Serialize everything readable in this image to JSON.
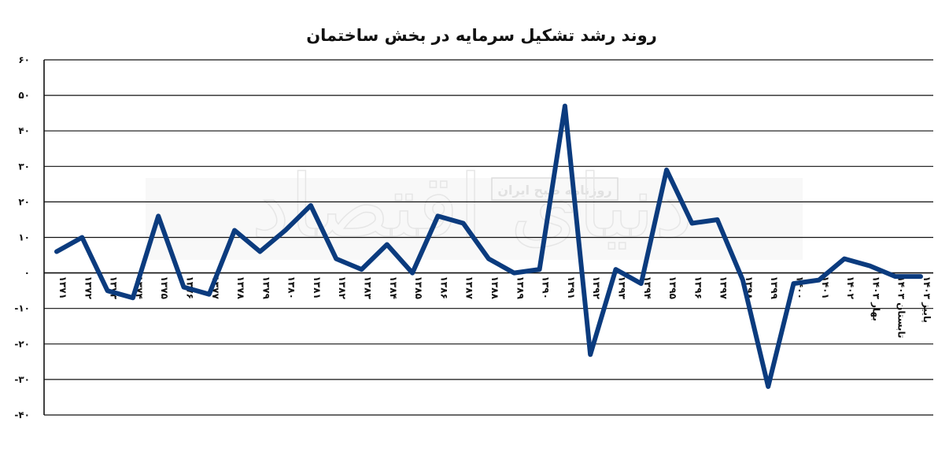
{
  "chart_data": {
    "type": "line",
    "title": "روند رشد تشکیل سرمایه در بخش ساختمان",
    "categories": [
      "۱۳۷۱",
      "۱۳۷۲",
      "۱۳۷۳",
      "۱۳۷۴",
      "۱۳۷۵",
      "۱۳۷۶",
      "۱۳۷۷",
      "۱۳۷۸",
      "۱۳۷۹",
      "۱۳۸۰",
      "۱۳۸۱",
      "۱۳۸۲",
      "۱۳۸۳",
      "۱۳۸۴",
      "۱۳۸۵",
      "۱۳۸۶",
      "۱۳۸۷",
      "۱۳۸۸",
      "۱۳۸۹",
      "۱۳۹۰",
      "۱۳۹۱",
      "۱۳۹۲",
      "۱۳۹۳",
      "۱۳۹۴",
      "۱۳۹۵",
      "۱۳۹۶",
      "۱۳۹۷",
      "۱۳۹۸",
      "۱۳۹۹",
      "۱۴۰۰",
      "۱۴۰۱",
      "۱۴۰۲",
      "بهار ۱۴۰۳",
      "تابستان ۱۴۰۳",
      "پاییز ۱۴۰۳"
    ],
    "series": [
      {
        "values": [
          6,
          10,
          -5,
          -7,
          16,
          -4,
          -6,
          12,
          6,
          12,
          19,
          4,
          1,
          8,
          0,
          16,
          14,
          4,
          0,
          1,
          47,
          -23,
          1,
          -3,
          29,
          14,
          15,
          -2,
          -32,
          -3,
          -2,
          4,
          2,
          -1,
          -1
        ]
      }
    ],
    "y_ticks": [
      "۶۰",
      "۵۰",
      "۴۰",
      "۳۰",
      "۲۰",
      "۱۰",
      "۰",
      "-۱۰",
      "-۲۰",
      "-۳۰",
      "-۴۰"
    ],
    "ylim": [
      -40,
      60
    ],
    "grid": true,
    "legend": "none",
    "color": "#0b3b7e"
  },
  "watermark": {
    "brand": "دنیای اقتصاد",
    "tagline": "روزنامه صبح ایران"
  }
}
